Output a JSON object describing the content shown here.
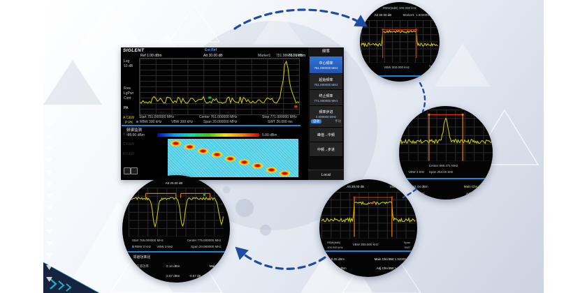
{
  "brand": {
    "logo_text": "SIGLENT"
  },
  "screen": {
    "header": {
      "ext_ref": "Ext Ref"
    },
    "status": {
      "ref": "Ref 1.00 dBm",
      "att": "Att 30.00 dB",
      "marker": "Marker1",
      "marker_freq": "751.986667 MHz",
      "marker_amp": "-75.91 dBm"
    },
    "left_labels": {
      "l0": "Log",
      "l1": "10 dB",
      "l2": "Free",
      "l3": "LgPwr",
      "l4": "Cont",
      "l5": "PA",
      "trace": "A C&W",
      "det": "P:PK",
      "dim0": "B F&W",
      "dim1": "C F&W",
      "dim2": "D F&W"
    },
    "xaxis": {
      "start": "Start 751.000000 MHz",
      "center": "Center 761.000000 MHz",
      "stop": "Stop 771.000000 MHz"
    },
    "bw": {
      "rbw": "RBW 300 kHz",
      "vbw": "VBW 300 kHz",
      "span": "Span 20.000000 MHz",
      "swt": "SWT 26.000 ms"
    },
    "monitor": {
      "title": "频谱监测",
      "min": "-65.00 dBm",
      "max": "5.00 dBm"
    },
    "menu": {
      "title": "频率",
      "item0_label": "中心频率",
      "item0_value": "761.000000 MHz",
      "item1_label": "起始频率",
      "item1_value": "751.000000 MHz",
      "item2_label": "终止频率",
      "item2_value": "771.000000 MHz",
      "item3_label": "频率步进",
      "item3_value": "2.000000 MHz",
      "item3_auto": "自动",
      "item3_manual": "手动",
      "item4_label": "峰值→中频",
      "item5_label": "中频→步进",
      "footer": "Local"
    }
  },
  "callout_a": {
    "row1": "RBW(6dB) 100.000 kHz",
    "att": "Att 30.00 dB",
    "marker": "Marker1",
    "marker_val": "1.920000 MHz",
    "vbw": "VBW 300.000 kHz",
    "span": "Span",
    "swt": "SWT"
  },
  "callout_b": {
    "center": "Center 899.471 MHz",
    "span": "Span 264.00 kHz",
    "vbw": "VBW 3 kHz",
    "r1_val": "-11.04 dBm",
    "r1_label": "Main Chn BW",
    "r2_val": "1.00 kHz",
    "r2_label": "Adj Chn BW"
  },
  "callout_c": {
    "att": "Att 30.00 dB",
    "marker": "Marker1",
    "rbw1": "RBW(6dB)",
    "rbw2": "100.000 kHz",
    "vbw": "VBW 300.000 kHz",
    "span": "Span",
    "swt": "SWT",
    "r1_val": "-8.05 dBm",
    "r1_label": "Main Chn BW",
    "r1_bw": "1.92000 MHz",
    "r2_val": "-61.50 dBm",
    "r2_label": "Adj Chn BW",
    "r2_bw": "1.92000 MHz"
  },
  "callout_d": {
    "att": "Att 20.00 dB",
    "start": "Start 765.000000 MHz",
    "center": "Center 775.000000 MHz",
    "rbw": "RBW 3 kHz",
    "vbw": "VBW 3 kHz",
    "span": "Span 20.000000 MHz",
    "title": "邻道功率比",
    "r1_label": "主信道功率",
    "r1_val": "-2.14 dBm",
    "r1_right": "Main Ch",
    "r2_label": "邻道功率",
    "r2_val": "-3.57 dBm",
    "r2_val2": "-0.57 dB"
  },
  "colors": {
    "accent_blue": "#2a6bd2",
    "trace_yellow": "#d4d400",
    "line_blue": "#1687d9",
    "dash_blue": "#1c4da0",
    "waterfall_cyan": "#55d7e9",
    "bracket_red": "#e03000",
    "bracket_orange": "#f08000",
    "marker_green": "#00c832"
  }
}
